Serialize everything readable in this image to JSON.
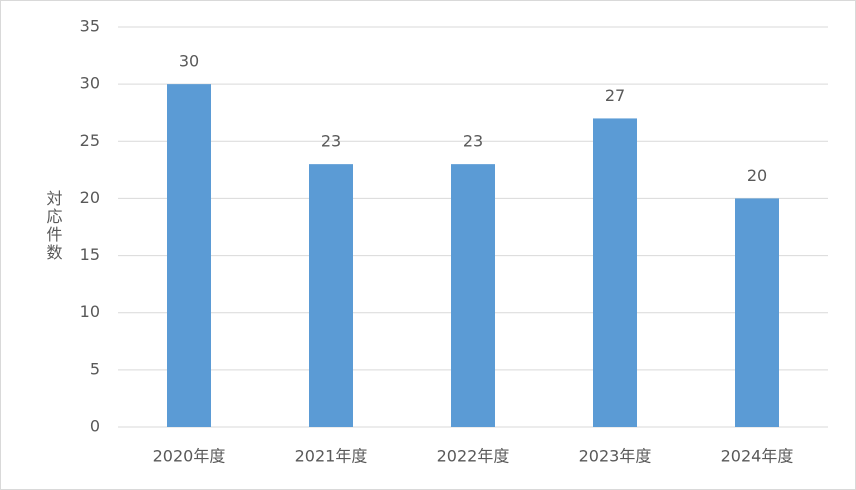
{
  "chart_data": {
    "type": "bar",
    "y_label": "対応件数",
    "categories": [
      "2020年度",
      "2021年度",
      "2022年度",
      "2023年度",
      "2024年度"
    ],
    "values": [
      30,
      23,
      23,
      27,
      20
    ],
    "color": "#5b9bd5",
    "ylim": [
      0,
      35
    ],
    "yticks": [
      0,
      5,
      10,
      15,
      20,
      25,
      30,
      35
    ],
    "grid": true
  }
}
